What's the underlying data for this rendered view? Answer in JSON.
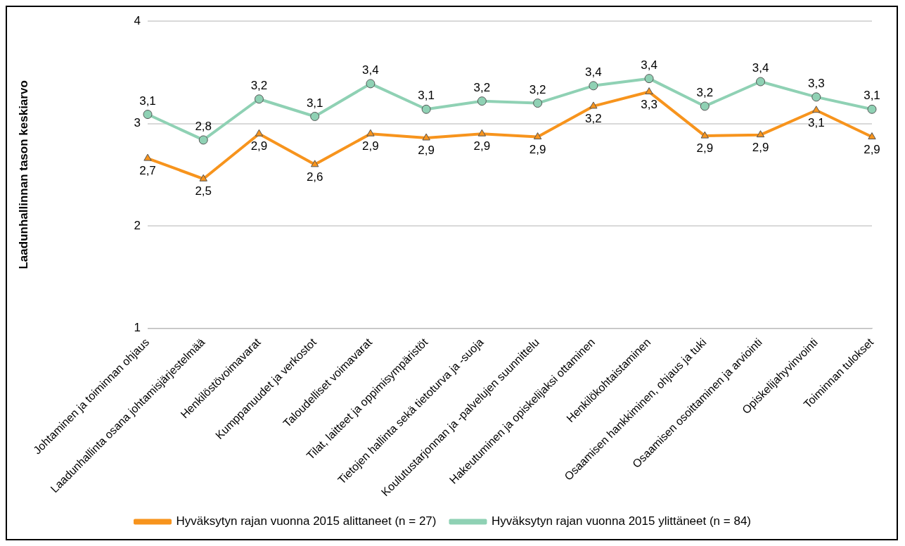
{
  "chart_data": {
    "type": "line",
    "ylabel": "Laadunhallinnan tason keskiarvo",
    "categories": [
      "Johtaminen ja toiminnan ohjaus",
      "Laadunhallinta osana johtamisjärjestelmää",
      "Henkilöstövoimavarat",
      "Kumppanuudet ja verkostot",
      "Taloudelliset voimavarat",
      "Tilat, laitteet ja oppimisympäristöt",
      "Tietojen hallinta sekä tietoturva ja -suoja",
      "Koulutustarjonnan ja -palvelujen suunnittelu",
      "Hakeutuminen ja opiskelijaksi ottaminen",
      "Henkilökohtaistaminen",
      "Osaamisen hankkiminen, ohjaus ja tuki",
      "Osaamisen osoittaminen ja arviointi",
      "Opiskelijahyvinvointi",
      "Toiminnan tulokset"
    ],
    "series": [
      {
        "name": "Hyväksytyn rajan vuonna 2015 alittaneet (n = 27)",
        "color": "#f7941d",
        "marker": "triangle",
        "values": [
          2.66,
          2.46,
          2.9,
          2.6,
          2.9,
          2.86,
          2.9,
          2.87,
          3.17,
          3.31,
          2.88,
          2.89,
          3.13,
          2.87
        ],
        "value_labels": [
          "2,7",
          "2,5",
          "2,9",
          "2,6",
          "2,9",
          "2,9",
          "2,9",
          "2,9",
          "3,2",
          "3,3",
          "2,9",
          "2,9",
          "3,1",
          "2,9"
        ]
      },
      {
        "name": "Hyväksytyn rajan vuonna 2015 ylittäneet (n = 84)",
        "color": "#8fd1b4",
        "marker": "circle",
        "values": [
          3.09,
          2.84,
          3.24,
          3.07,
          3.39,
          3.14,
          3.22,
          3.2,
          3.37,
          3.44,
          3.17,
          3.41,
          3.26,
          3.14
        ],
        "value_labels": [
          "3,1",
          "2,8",
          "3,2",
          "3,1",
          "3,4",
          "3,1",
          "3,2",
          "3,2",
          "3,4",
          "3,4",
          "3,2",
          "3,4",
          "3,3",
          "3,1"
        ]
      }
    ],
    "ylim": [
      1,
      4
    ],
    "yticks": [
      1,
      2,
      3,
      4
    ],
    "grid": "y",
    "legend": "bottom"
  }
}
